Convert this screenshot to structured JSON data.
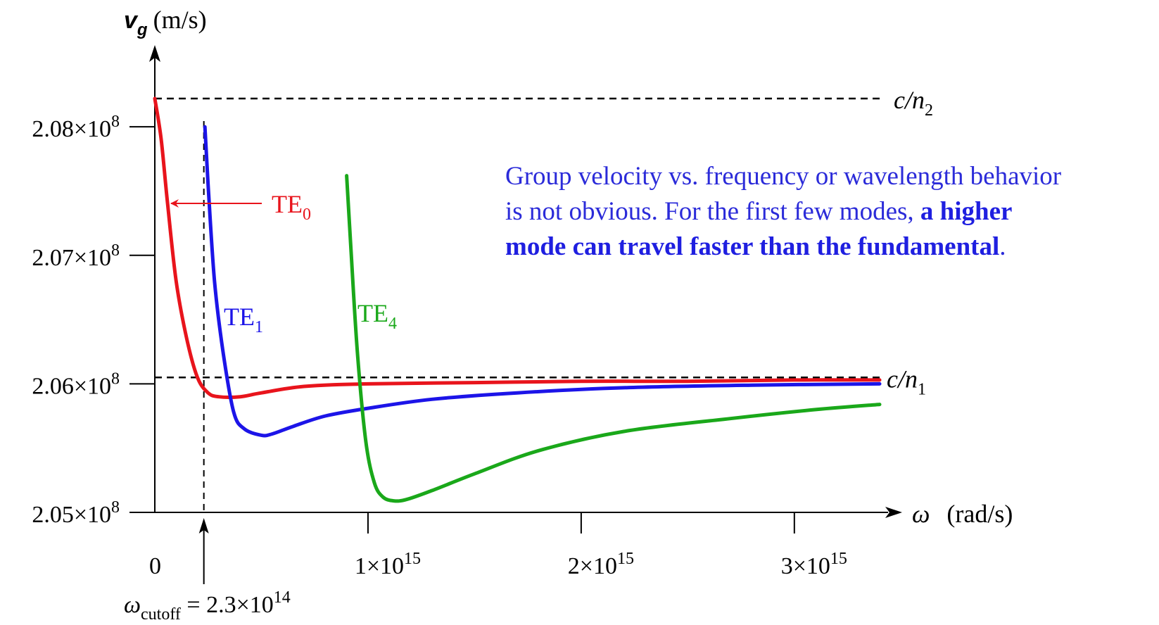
{
  "chart_data": {
    "type": "line",
    "ylabel": {
      "symbol": "v",
      "sub": "g",
      "unit": "(m/s)"
    },
    "xlabel": {
      "symbol": "ω",
      "unit": "(rad/s)"
    },
    "xlim": [
      0,
      3400000000000000.0
    ],
    "ylim": [
      205000000.0,
      208220000.0
    ],
    "yticks": [
      {
        "value": 205000000.0,
        "mant": "2.05×10",
        "exp": "8"
      },
      {
        "value": 206000000.0,
        "mant": "2.06×10",
        "exp": "8"
      },
      {
        "value": 207000000.0,
        "mant": "2.07×10",
        "exp": "8"
      },
      {
        "value": 208000000.0,
        "mant": "2.08×10",
        "exp": "8"
      }
    ],
    "xticks": [
      {
        "value": 0,
        "mant": "0",
        "exp": ""
      },
      {
        "value": 1000000000000000.0,
        "mant": "1×10",
        "exp": "15"
      },
      {
        "value": 2000000000000000.0,
        "mant": "2×10",
        "exp": "15"
      },
      {
        "value": 3000000000000000.0,
        "mant": "3×10",
        "exp": "15"
      }
    ],
    "reference_lines": [
      {
        "value": 208220000.0,
        "label_main": "c/n",
        "label_sub": "2"
      },
      {
        "value": 206050000.0,
        "label_main": "c/n",
        "label_sub": "1"
      }
    ],
    "cutoff": {
      "value": 230000000000000.0,
      "label_sym": "ω",
      "label_sub": "cutoff",
      "label_rest": " = 2.3×10",
      "label_exp": "14"
    },
    "series": [
      {
        "name_main": "TE",
        "name_sub": "0",
        "color": "#e8141c",
        "x": [
          0,
          30000000000000.0,
          60000000000000.0,
          100000000000000.0,
          150000000000000.0,
          200000000000000.0,
          250000000000000.0,
          300000000000000.0,
          400000000000000.0,
          500000000000000.0,
          700000000000000.0,
          1000000000000000.0,
          1500000000000000.0,
          2000000000000000.0,
          2500000000000000.0,
          3000000000000000.0,
          3400000000000000.0
        ],
        "y": [
          208220000.0,
          207900000.0,
          207400000.0,
          206800000.0,
          206350000.0,
          206050000.0,
          205930000.0,
          205900000.0,
          205900000.0,
          205930000.0,
          205980000.0,
          206000000.0,
          206010000.0,
          206020000.0,
          206020000.0,
          206030000.0,
          206030000.0
        ]
      },
      {
        "name_main": "TE",
        "name_sub": "1",
        "color": "#1c14e8",
        "x": [
          235000000000000.0,
          250000000000000.0,
          280000000000000.0,
          320000000000000.0,
          370000000000000.0,
          420000000000000.0,
          500000000000000.0,
          550000000000000.0,
          650000000000000.0,
          800000000000000.0,
          1000000000000000.0,
          1300000000000000.0,
          1700000000000000.0,
          2200000000000000.0,
          2800000000000000.0,
          3400000000000000.0
        ],
        "y": [
          208000000.0,
          207550000.0,
          206800000.0,
          206250000.0,
          205780000.0,
          205650000.0,
          205600000.0,
          205610000.0,
          205670000.0,
          205750000.0,
          205810000.0,
          205880000.0,
          205930000.0,
          205970000.0,
          205990000.0,
          206000000.0
        ]
      },
      {
        "name_main": "TE",
        "name_sub": "4",
        "color": "#1aa81a",
        "x": [
          900000000000000.0,
          920000000000000.0,
          950000000000000.0,
          990000000000000.0,
          1030000000000000.0,
          1070000000000000.0,
          1120000000000000.0,
          1180000000000000.0,
          1300000000000000.0,
          1500000000000000.0,
          1800000000000000.0,
          2200000000000000.0,
          2700000000000000.0,
          3100000000000000.0,
          3400000000000000.0
        ],
        "y": [
          207620000.0,
          207050000.0,
          206250000.0,
          205550000.0,
          205230000.0,
          205120000.0,
          205090000.0,
          205100000.0,
          205170000.0,
          205300000.0,
          205480000.0,
          205630000.0,
          205730000.0,
          205800000.0,
          205840000.0
        ]
      }
    ]
  },
  "annotation": {
    "line1": "Group velocity vs. frequency or wavelength behavior",
    "line2_plain": "is not obvious. For the first few modes,",
    "line2_bold": "a higher",
    "line3_bold": "mode can travel faster than the fundamental",
    "line3_end": "."
  }
}
